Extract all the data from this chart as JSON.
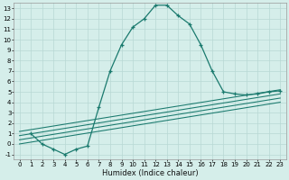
{
  "xlabel": "Humidex (Indice chaleur)",
  "ylabel": "",
  "bg_color": "#d5eeea",
  "grid_color": "#b8d8d4",
  "line_color": "#1a7a6e",
  "xlim": [
    -0.5,
    23.5
  ],
  "ylim": [
    -1.5,
    13.5
  ],
  "xtick_labels": [
    "0",
    "1",
    "2",
    "3",
    "4",
    "5",
    "6",
    "7",
    "8",
    "9",
    "10",
    "11",
    "12",
    "13",
    "14",
    "15",
    "16",
    "17",
    "18",
    "19",
    "20",
    "21",
    "22",
    "23"
  ],
  "ytick_labels": [
    "-1",
    "0",
    "1",
    "2",
    "3",
    "4",
    "5",
    "6",
    "7",
    "8",
    "9",
    "10",
    "11",
    "12",
    "13"
  ],
  "xtick_vals": [
    0,
    1,
    2,
    3,
    4,
    5,
    6,
    7,
    8,
    9,
    10,
    11,
    12,
    13,
    14,
    15,
    16,
    17,
    18,
    19,
    20,
    21,
    22,
    23
  ],
  "ytick_vals": [
    -1,
    0,
    1,
    2,
    3,
    4,
    5,
    6,
    7,
    8,
    9,
    10,
    11,
    12,
    13
  ],
  "main_curve_x": [
    1,
    2,
    3,
    4,
    5,
    6,
    7,
    8,
    9,
    10,
    11,
    12,
    13,
    14,
    15,
    16,
    17,
    18,
    19,
    20,
    21,
    22,
    23
  ],
  "main_curve_y": [
    1.0,
    0.0,
    -0.5,
    -1.0,
    -0.5,
    -0.2,
    3.5,
    7.0,
    9.5,
    11.2,
    12.0,
    13.3,
    13.3,
    12.3,
    11.5,
    9.5,
    7.0,
    5.0,
    4.8,
    4.7,
    4.8,
    5.0,
    5.1
  ],
  "fan_lines": [
    {
      "x": [
        0,
        23
      ],
      "y": [
        1.2,
        5.2
      ]
    },
    {
      "x": [
        0,
        23
      ],
      "y": [
        0.8,
        4.8
      ]
    },
    {
      "x": [
        0,
        23
      ],
      "y": [
        0.4,
        4.4
      ]
    },
    {
      "x": [
        0,
        23
      ],
      "y": [
        0.0,
        4.0
      ]
    }
  ],
  "marker_size": 3.5,
  "line_width": 0.9,
  "font_size_tick": 5,
  "font_size_label": 6
}
